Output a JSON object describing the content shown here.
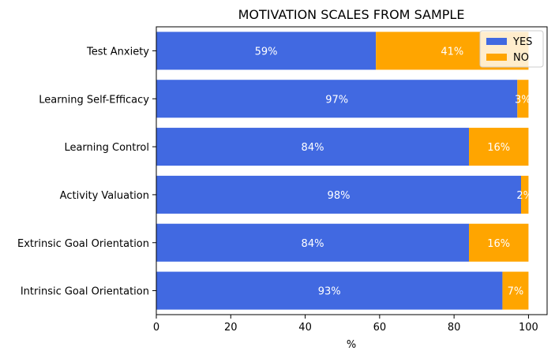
{
  "chart_data": {
    "type": "bar",
    "orientation": "horizontal",
    "stacked": true,
    "title": "MOTIVATION SCALES FROM SAMPLE",
    "xlabel": "%",
    "ylabel": "",
    "xlim": [
      0,
      105
    ],
    "xticks": [
      "0",
      "20",
      "40",
      "60",
      "80",
      "100"
    ],
    "grid": false,
    "legend_position": "top-right",
    "categories": [
      "Test Anxiety",
      "Learning Self-Efficacy",
      "Learning Control",
      "Activity Valuation",
      "Extrinsic Goal Orientation",
      "Intrinsic Goal Orientation"
    ],
    "series": [
      {
        "name": "YES",
        "color": "#4169E1",
        "values": [
          59,
          97,
          84,
          98,
          84,
          93
        ],
        "labels": [
          "59%",
          "97%",
          "84%",
          "98%",
          "84%",
          "93%"
        ]
      },
      {
        "name": "NO",
        "color": "#FFA500",
        "values": [
          41,
          3,
          16,
          2,
          16,
          7
        ],
        "labels": [
          "41%",
          "3%",
          "16%",
          "2%",
          "16%",
          "7%"
        ]
      }
    ]
  }
}
